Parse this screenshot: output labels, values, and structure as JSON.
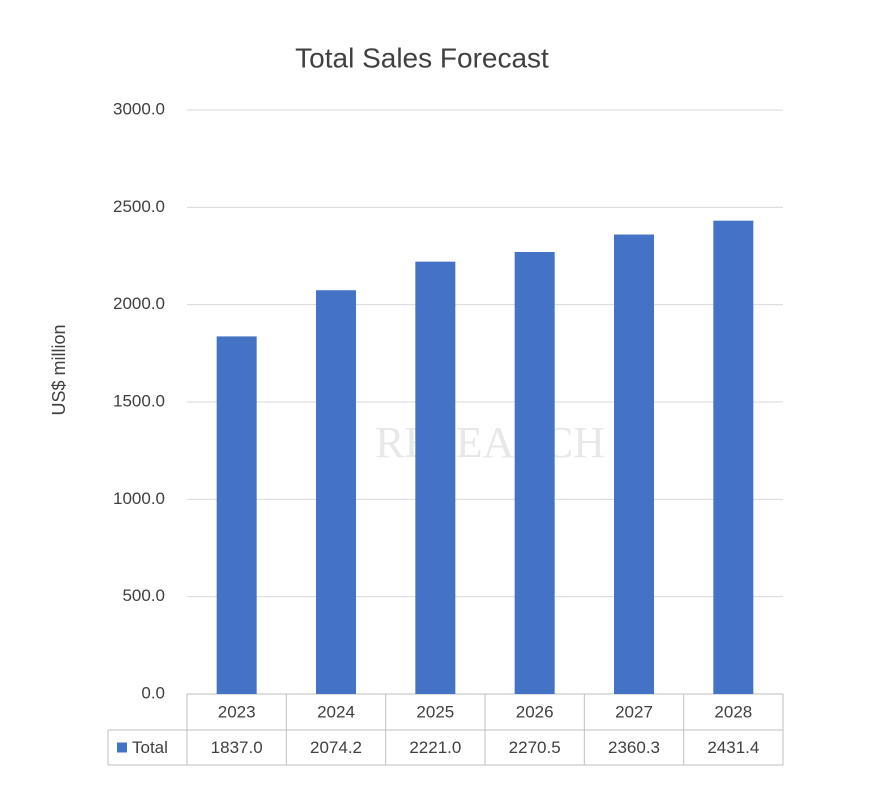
{
  "chart_data": {
    "type": "bar",
    "title": "Total Sales Forecast",
    "y_label": "US$ million",
    "watermark": "RESEARCH",
    "categories": [
      "2023",
      "2024",
      "2025",
      "2026",
      "2027",
      "2028"
    ],
    "series": [
      {
        "name": "Total",
        "color": "#4472c4",
        "values": [
          1837.0,
          2074.2,
          2221.0,
          2270.5,
          2360.3,
          2431.4
        ],
        "value_labels": [
          "1837.0",
          "2074.2",
          "2221.0",
          "2270.5",
          "2360.3",
          "2431.4"
        ]
      }
    ],
    "ylim": [
      0,
      3000
    ],
    "yticks": [
      {
        "value": 0,
        "label": "0.0"
      },
      {
        "value": 500,
        "label": "500.0"
      },
      {
        "value": 1000,
        "label": "1000.0"
      },
      {
        "value": 1500,
        "label": "1500.0"
      },
      {
        "value": 2000,
        "label": "2000.0"
      },
      {
        "value": 2500,
        "label": "2500.0"
      },
      {
        "value": 3000,
        "label": "3000.0"
      }
    ],
    "grid": true,
    "data_table": true
  }
}
